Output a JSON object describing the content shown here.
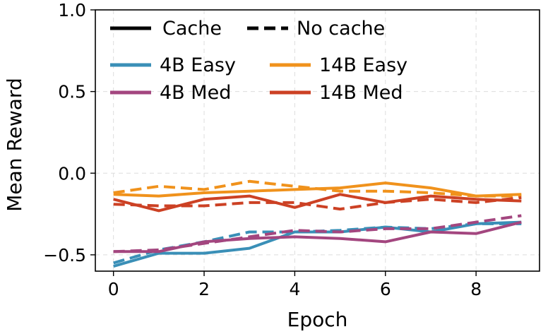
{
  "chart_data": {
    "type": "line",
    "xlabel": "Epoch",
    "ylabel": "Mean Reward",
    "xlim": [
      -0.4,
      9.4
    ],
    "ylim": [
      -0.6,
      1.0
    ],
    "xticks": [
      0,
      2,
      4,
      6,
      8
    ],
    "yticks": [
      1.0,
      0.5,
      0.0,
      -0.5
    ],
    "xtick_labels": [
      "0",
      "2",
      "4",
      "6",
      "8"
    ],
    "ytick_labels": [
      "1.0",
      "0.5",
      "0.0",
      "−0.5"
    ],
    "grid": true,
    "legend": {
      "placement": "top-left",
      "style_entries": [
        {
          "label": "Cache",
          "dash": "solid"
        },
        {
          "label": "No cache",
          "dash": "dashed"
        }
      ],
      "model_entries": [
        {
          "label": "4B Easy",
          "color": "#3a8fb7"
        },
        {
          "label": "14B Easy",
          "color": "#f0921c"
        },
        {
          "label": "4B Med",
          "color": "#a3467f"
        },
        {
          "label": "14B Med",
          "color": "#cc4124"
        }
      ]
    },
    "x": [
      0,
      1,
      2,
      3,
      4,
      5,
      6,
      7,
      8,
      9
    ],
    "series": [
      {
        "model": "4B Easy",
        "variant": "Cache",
        "color": "#3a8fb7",
        "dash": "solid",
        "values": [
          -0.57,
          -0.49,
          -0.49,
          -0.46,
          -0.36,
          -0.36,
          -0.33,
          -0.36,
          -0.31,
          -0.3
        ]
      },
      {
        "model": "4B Easy",
        "variant": "No cache",
        "color": "#3a8fb7",
        "dash": "dashed",
        "values": [
          -0.55,
          -0.47,
          -0.42,
          -0.36,
          -0.36,
          -0.35,
          -0.33,
          -0.34,
          -0.31,
          -0.31
        ]
      },
      {
        "model": "4B Med",
        "variant": "Cache",
        "color": "#a3467f",
        "dash": "solid",
        "values": [
          -0.48,
          -0.48,
          -0.42,
          -0.4,
          -0.39,
          -0.4,
          -0.42,
          -0.36,
          -0.37,
          -0.3
        ]
      },
      {
        "model": "4B Med",
        "variant": "No cache",
        "color": "#a3467f",
        "dash": "dashed",
        "values": [
          -0.48,
          -0.47,
          -0.43,
          -0.39,
          -0.35,
          -0.36,
          -0.34,
          -0.34,
          -0.3,
          -0.26
        ]
      },
      {
        "model": "14B Easy",
        "variant": "Cache",
        "color": "#f0921c",
        "dash": "solid",
        "values": [
          -0.13,
          -0.14,
          -0.12,
          -0.11,
          -0.1,
          -0.09,
          -0.06,
          -0.09,
          -0.14,
          -0.13
        ]
      },
      {
        "model": "14B Easy",
        "variant": "No cache",
        "color": "#f0921c",
        "dash": "dashed",
        "values": [
          -0.12,
          -0.08,
          -0.1,
          -0.05,
          -0.08,
          -0.11,
          -0.11,
          -0.12,
          -0.14,
          -0.14
        ]
      },
      {
        "model": "14B Med",
        "variant": "Cache",
        "color": "#cc4124",
        "dash": "solid",
        "values": [
          -0.16,
          -0.23,
          -0.16,
          -0.14,
          -0.21,
          -0.13,
          -0.18,
          -0.14,
          -0.16,
          -0.17
        ]
      },
      {
        "model": "14B Med",
        "variant": "No cache",
        "color": "#cc4124",
        "dash": "dashed",
        "values": [
          -0.19,
          -0.2,
          -0.2,
          -0.18,
          -0.18,
          -0.22,
          -0.18,
          -0.16,
          -0.18,
          -0.15
        ]
      }
    ]
  }
}
